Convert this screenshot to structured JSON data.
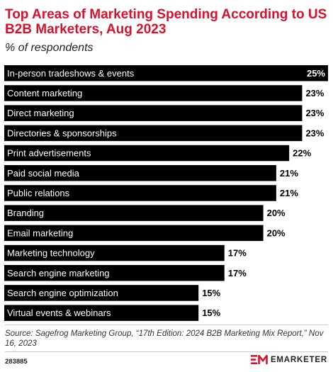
{
  "header": {
    "title": "Top Areas of Marketing Spending According to US B2B Marketers, Aug 2023",
    "subtitle": "% of respondents"
  },
  "chart_data": {
    "type": "bar",
    "orientation": "horizontal",
    "categories": [
      "In-person tradeshows & events",
      "Content marketing",
      "Direct marketing",
      "Directories & sponsorships",
      "Print advertisements",
      "Paid social media",
      "Public relations",
      "Branding",
      "Email marketing",
      "Marketing technology",
      "Search engine marketing",
      "Search engine optimization",
      "Virtual events & webinars"
    ],
    "values": [
      25,
      23,
      23,
      23,
      22,
      21,
      21,
      20,
      20,
      17,
      17,
      15,
      15
    ],
    "value_labels": [
      "25%",
      "23%",
      "23%",
      "23%",
      "22%",
      "21%",
      "21%",
      "20%",
      "20%",
      "17%",
      "17%",
      "15%",
      "15%"
    ],
    "bar_color": "#000000",
    "label_color": "#ffffff",
    "xlim": [
      0,
      25
    ],
    "grid": false,
    "legend": "none"
  },
  "footer": {
    "source": "Source: Sagefrog Marketing Group, “17th Edition: 2024 B2B Marketing Mix Report,” Nov 16, 2023",
    "chart_id": "283885",
    "brand": "EMARKETER",
    "brand_icon": "em-logo-icon",
    "brand_color": "#d8112c"
  }
}
